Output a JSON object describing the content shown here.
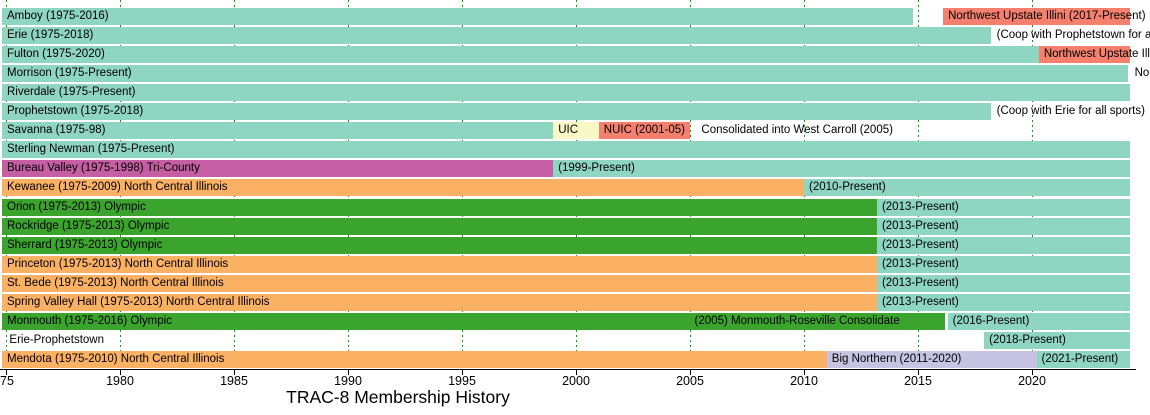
{
  "title": "TRAC-8 Membership History",
  "colors": {
    "teal": "#8ED5C2",
    "coral": "#F4806D",
    "yellow": "#FAF8C6",
    "orange": "#FBB164",
    "green": "#3AA42C",
    "magenta": "#C55EA2",
    "lavender": "#C7C3E2",
    "gridline": "#00A300",
    "axis": "#000000"
  },
  "chart_data": {
    "type": "bar",
    "variant": "horizontal-timeline-gantt",
    "title": "TRAC-8 Membership History",
    "xlabel": "",
    "ylabel": "",
    "x_range": [
      1975,
      2025.4
    ],
    "grid": "green dashed vertical lines every 5 years",
    "x_axis_ticks": [
      {
        "year": 1975,
        "label": "75"
      },
      {
        "year": 1980,
        "label": "1980"
      },
      {
        "year": 1985,
        "label": "1985"
      },
      {
        "year": 1990,
        "label": "1990"
      },
      {
        "year": 1995,
        "label": "1995"
      },
      {
        "year": 2000,
        "label": "2000"
      },
      {
        "year": 2005,
        "label": "2005"
      },
      {
        "year": 2010,
        "label": "2010"
      },
      {
        "year": 2015,
        "label": "2015"
      },
      {
        "year": 2020,
        "label": "2020"
      }
    ],
    "rows": [
      {
        "name": "Amboy",
        "bars": [
          {
            "start": 1975,
            "end": 2014.8,
            "color": "teal",
            "label": "Amboy (1975-2016)"
          },
          {
            "start": 2016.1,
            "end": 2024.3,
            "color": "coral",
            "label": "Northwest Upstate Illini (2017-Present)"
          }
        ],
        "texts": []
      },
      {
        "name": "Erie",
        "bars": [
          {
            "start": 1975,
            "end": 2018.2,
            "color": "teal",
            "label": "Erie (1975-2018)"
          }
        ],
        "texts": [
          {
            "at": 2018.45,
            "label": "(Coop with Prophetstown for all sp"
          }
        ]
      },
      {
        "name": "Fulton",
        "bars": [
          {
            "start": 1975,
            "end": 2020.3,
            "color": "teal",
            "label": "Fulton (1975-2020)"
          },
          {
            "start": 2020.3,
            "end": 2024.3,
            "color": "coral",
            "label": "Northwest Upstate Illini"
          }
        ],
        "texts": []
      },
      {
        "name": "Morrison",
        "bars": [
          {
            "start": 1975,
            "end": 2024.2,
            "color": "teal",
            "label": "Morrison (1975-Present)"
          }
        ],
        "texts": [
          {
            "at": 2024.5,
            "label": "Nor"
          }
        ]
      },
      {
        "name": "Riverdale",
        "bars": [
          {
            "start": 1975,
            "end": 2024.3,
            "color": "teal",
            "label": "Riverdale (1975-Present)"
          }
        ],
        "texts": []
      },
      {
        "name": "Prophetstown",
        "bars": [
          {
            "start": 1975,
            "end": 2018.2,
            "color": "teal",
            "label": "Prophetstown (1975-2018)"
          }
        ],
        "texts": [
          {
            "at": 2018.45,
            "label": "(Coop with Erie for all sports)"
          }
        ]
      },
      {
        "name": "Savanna",
        "bars": [
          {
            "start": 1975,
            "end": 1999.0,
            "color": "teal",
            "label": "Savanna (1975-98)"
          },
          {
            "start": 1999.0,
            "end": 2001.0,
            "color": "yellow",
            "label": "UIC"
          },
          {
            "start": 2001.0,
            "end": 2005.0,
            "color": "coral",
            "label": "NUIC (2001-05)"
          }
        ],
        "texts": [
          {
            "at": 2005.5,
            "label": "Consolidated into West Carroll (2005)"
          }
        ]
      },
      {
        "name": "Sterling Newman",
        "bars": [
          {
            "start": 1975,
            "end": 2024.3,
            "color": "teal",
            "label": "Sterling Newman (1975-Present)"
          }
        ],
        "texts": []
      },
      {
        "name": "Bureau Valley",
        "bars": [
          {
            "start": 1975,
            "end": 1999.0,
            "color": "magenta",
            "label": "Bureau Valley (1975-1998) Tri-County"
          },
          {
            "start": 1999.0,
            "end": 2024.3,
            "color": "teal",
            "label": "(1999-Present)"
          }
        ],
        "texts": []
      },
      {
        "name": "Kewanee",
        "bars": [
          {
            "start": 1975,
            "end": 2010.0,
            "color": "orange",
            "label": "Kewanee (1975-2009) North Central Illinois"
          },
          {
            "start": 2010.0,
            "end": 2024.3,
            "color": "teal",
            "label": "(2010-Present)"
          }
        ],
        "texts": []
      },
      {
        "name": "Orion",
        "bars": [
          {
            "start": 1975,
            "end": 2013.2,
            "color": "green",
            "label": "Orion (1975-2013) Olympic"
          },
          {
            "start": 2013.2,
            "end": 2024.3,
            "color": "teal",
            "label": "(2013-Present)"
          }
        ],
        "texts": []
      },
      {
        "name": "Rockridge",
        "bars": [
          {
            "start": 1975,
            "end": 2013.2,
            "color": "green",
            "label": "Rockridge (1975-2013) Olympic"
          },
          {
            "start": 2013.2,
            "end": 2024.3,
            "color": "teal",
            "label": "(2013-Present)"
          }
        ],
        "texts": []
      },
      {
        "name": "Sherrard",
        "bars": [
          {
            "start": 1975,
            "end": 2013.2,
            "color": "green",
            "label": "Sherrard (1975-2013) Olympic"
          },
          {
            "start": 2013.2,
            "end": 2024.3,
            "color": "teal",
            "label": "(2013-Present)"
          }
        ],
        "texts": []
      },
      {
        "name": "Princeton",
        "bars": [
          {
            "start": 1975,
            "end": 2013.2,
            "color": "orange",
            "label": "Princeton (1975-2013) North Central Illinois"
          },
          {
            "start": 2013.2,
            "end": 2024.3,
            "color": "teal",
            "label": "(2013-Present)"
          }
        ],
        "texts": []
      },
      {
        "name": "St. Bede",
        "bars": [
          {
            "start": 1975,
            "end": 2013.2,
            "color": "orange",
            "label": "St. Bede (1975-2013) North Central Illinois"
          },
          {
            "start": 2013.2,
            "end": 2024.3,
            "color": "teal",
            "label": "(2013-Present)"
          }
        ],
        "texts": []
      },
      {
        "name": "Spring Valley Hall",
        "bars": [
          {
            "start": 1975,
            "end": 2013.2,
            "color": "orange",
            "label": "Spring Valley Hall (1975-2013) North Central Illinois"
          },
          {
            "start": 2013.2,
            "end": 2024.3,
            "color": "teal",
            "label": "(2013-Present)"
          }
        ],
        "texts": []
      },
      {
        "name": "Monmouth",
        "bars": [
          {
            "start": 1975,
            "end": 2016.2,
            "color": "green",
            "label": "Monmouth (1975-2016) Olympic"
          },
          {
            "start": 2016.3,
            "end": 2024.3,
            "color": "teal",
            "label": "(2016-Present)"
          }
        ],
        "texts": [
          {
            "at": 2005.2,
            "label": "(2005) Monmouth-Roseville Consolidate"
          }
        ]
      },
      {
        "name": "Erie-Prophetstown",
        "bars": [
          {
            "start": 2017.9,
            "end": 2024.3,
            "color": "teal",
            "label": "(2018-Present)"
          }
        ],
        "texts": [
          {
            "at": 1975.15,
            "label": "Erie-Prophetstown"
          }
        ]
      },
      {
        "name": "Mendota",
        "bars": [
          {
            "start": 1975,
            "end": 2011.0,
            "color": "orange",
            "label": "Mendota (1975-2010) North Central Illinois"
          },
          {
            "start": 2011.0,
            "end": 2020.2,
            "color": "lavender",
            "label": "Big Northern (2011-2020)"
          },
          {
            "start": 2020.2,
            "end": 2024.3,
            "color": "teal",
            "label": "(2021-Present)"
          }
        ],
        "texts": []
      }
    ]
  }
}
